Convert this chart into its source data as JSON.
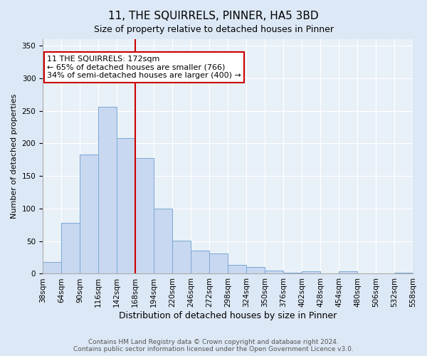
{
  "title": "11, THE SQUIRRELS, PINNER, HA5 3BD",
  "subtitle": "Size of property relative to detached houses in Pinner",
  "xlabel": "Distribution of detached houses by size in Pinner",
  "ylabel": "Number of detached properties",
  "bar_left_edges": [
    38,
    64,
    90,
    116,
    142,
    168,
    194,
    220,
    246,
    272,
    298,
    324,
    350,
    376,
    402,
    428,
    454,
    480,
    506,
    532
  ],
  "bar_heights": [
    18,
    78,
    183,
    256,
    208,
    178,
    100,
    51,
    36,
    31,
    14,
    10,
    5,
    2,
    4,
    1,
    4,
    1,
    1,
    2
  ],
  "bin_width": 26,
  "bar_color": "#c8d8f0",
  "bar_edge_color": "#7aa8d4",
  "vline_x": 168,
  "vline_color": "#cc0000",
  "ylim": [
    0,
    360
  ],
  "yticks": [
    0,
    50,
    100,
    150,
    200,
    250,
    300,
    350
  ],
  "xtick_labels": [
    "38sqm",
    "64sqm",
    "90sqm",
    "116sqm",
    "142sqm",
    "168sqm",
    "194sqm",
    "220sqm",
    "246sqm",
    "272sqm",
    "298sqm",
    "324sqm",
    "350sqm",
    "376sqm",
    "402sqm",
    "428sqm",
    "454sqm",
    "480sqm",
    "506sqm",
    "532sqm",
    "558sqm"
  ],
  "annotation_text": "11 THE SQUIRRELS: 172sqm\n← 65% of detached houses are smaller (766)\n34% of semi-detached houses are larger (400) →",
  "annotation_box_color": "#ffffff",
  "annotation_box_edge_color": "#cc0000",
  "footer_line1": "Contains HM Land Registry data © Crown copyright and database right 2024.",
  "footer_line2": "Contains public sector information licensed under the Open Government Licence v3.0.",
  "bg_color": "#dce8f5",
  "plot_bg_color": "#e8f0f8",
  "grid_color": "#ffffff",
  "title_fontsize": 11,
  "subtitle_fontsize": 9,
  "xlabel_fontsize": 9,
  "ylabel_fontsize": 8,
  "tick_fontsize": 7.5,
  "annotation_fontsize": 8,
  "footer_fontsize": 6.5
}
